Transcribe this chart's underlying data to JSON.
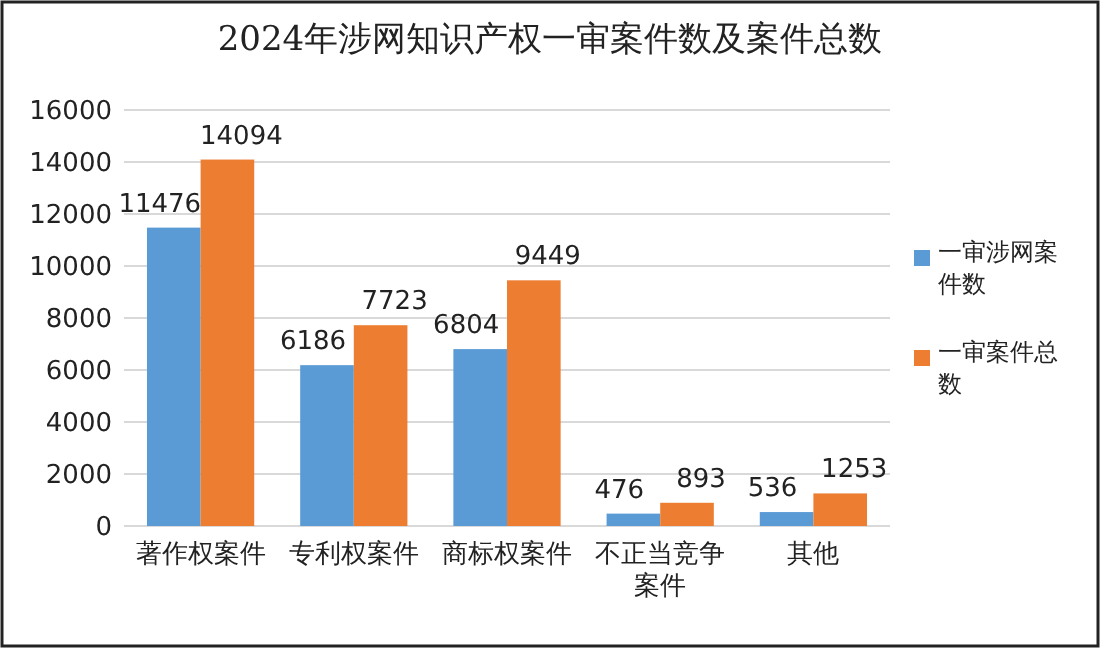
{
  "chart_data": {
    "type": "bar",
    "title": "2024年涉网知识产权一审案件数及案件总数",
    "categories": [
      "著作权案件",
      "专利权案件",
      "商标权案件",
      "不正当竞争案件",
      "其他"
    ],
    "series": [
      {
        "name": "一审涉网案件数",
        "color": "#5b9bd5",
        "values": [
          11476,
          6186,
          6804,
          476,
          536
        ]
      },
      {
        "name": "一审案件总数",
        "color": "#ed7d31",
        "values": [
          14094,
          7723,
          9449,
          893,
          1253
        ]
      }
    ],
    "ylim": [
      0,
      16000
    ],
    "yticks": [
      0,
      2000,
      4000,
      6000,
      8000,
      10000,
      12000,
      14000,
      16000
    ],
    "grid": "y",
    "legend": "right",
    "data_labels": true
  }
}
